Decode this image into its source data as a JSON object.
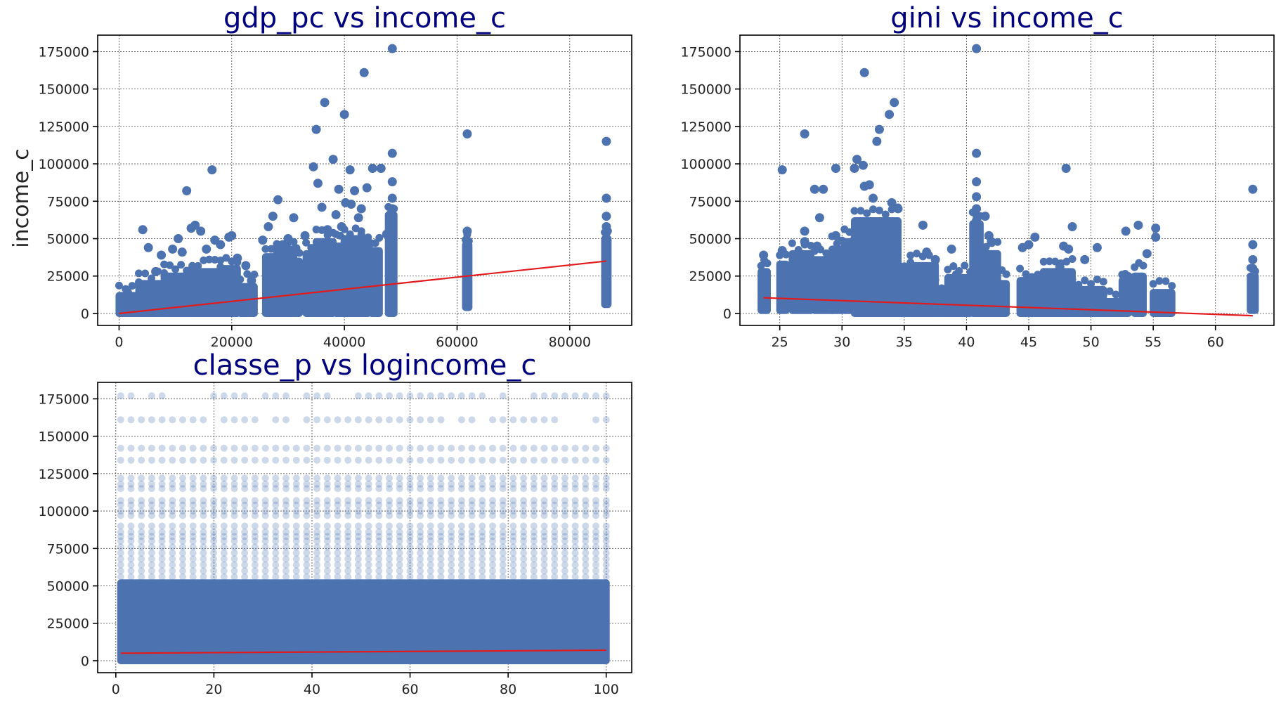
{
  "colors": {
    "points": "#4c72b0",
    "fit_line": "#e31a1c",
    "title": "#00007f"
  },
  "chart_data": [
    {
      "type": "scatter",
      "title": "gdp_pc vs income_c",
      "xlabel": "",
      "ylabel": "income_c",
      "xlim": [
        -3800,
        91000
      ],
      "ylim": [
        -8000,
        186000
      ],
      "grid": true,
      "xticks": [
        0,
        20000,
        40000,
        60000,
        80000
      ],
      "yticks": [
        0,
        25000,
        50000,
        75000,
        100000,
        125000,
        150000,
        175000
      ],
      "fit_line": [
        [
          0,
          0
        ],
        [
          86500,
          35000
        ]
      ],
      "points": [
        [
          1500,
          14000
        ],
        [
          2500,
          9000
        ],
        [
          3500,
          12000
        ],
        [
          4200,
          56000
        ],
        [
          5200,
          44000
        ],
        [
          6500,
          28000
        ],
        [
          7500,
          39000
        ],
        [
          8500,
          22000
        ],
        [
          9500,
          43000
        ],
        [
          10500,
          50000
        ],
        [
          11200,
          41000
        ],
        [
          12000,
          82000
        ],
        [
          12800,
          57000
        ],
        [
          13500,
          59000
        ],
        [
          14500,
          55000
        ],
        [
          15500,
          43000
        ],
        [
          16500,
          96000
        ],
        [
          17000,
          49000
        ],
        [
          18000,
          46000
        ],
        [
          19500,
          51000
        ],
        [
          20000,
          52000
        ],
        [
          21000,
          37000
        ],
        [
          22500,
          32000
        ],
        [
          23500,
          22000
        ],
        [
          25500,
          49000
        ],
        [
          26500,
          58000
        ],
        [
          27300,
          65000
        ],
        [
          28200,
          76000
        ],
        [
          29000,
          42000
        ],
        [
          30000,
          50000
        ],
        [
          31000,
          64000
        ],
        [
          33000,
          52000
        ],
        [
          34500,
          98000
        ],
        [
          35000,
          123000
        ],
        [
          35300,
          87000
        ],
        [
          36000,
          71000
        ],
        [
          36500,
          141000
        ],
        [
          37000,
          56000
        ],
        [
          38000,
          103000
        ],
        [
          38500,
          66000
        ],
        [
          39000,
          83000
        ],
        [
          39500,
          58000
        ],
        [
          40000,
          133000
        ],
        [
          40200,
          74000
        ],
        [
          41000,
          96000
        ],
        [
          41200,
          73000
        ],
        [
          41800,
          82000
        ],
        [
          42500,
          64000
        ],
        [
          43000,
          70000
        ],
        [
          43500,
          161000
        ],
        [
          44000,
          84000
        ],
        [
          45000,
          97000
        ],
        [
          46500,
          97000
        ],
        [
          47500,
          53000
        ],
        [
          48500,
          177000
        ],
        [
          48500,
          107000
        ],
        [
          48500,
          88000
        ],
        [
          48500,
          77000
        ],
        [
          48500,
          70000
        ],
        [
          61800,
          120000
        ],
        [
          61800,
          55000
        ],
        [
          61800,
          48000
        ],
        [
          86500,
          115000
        ],
        [
          86500,
          77000
        ],
        [
          86500,
          65000
        ],
        [
          86500,
          58000
        ],
        [
          86500,
          54000
        ]
      ],
      "bands": [
        [
          0,
          3500,
          0,
          12000
        ],
        [
          3500,
          8000,
          0,
          20000
        ],
        [
          8000,
          13000,
          0,
          25000
        ],
        [
          13000,
          18000,
          0,
          28000
        ],
        [
          18000,
          21000,
          0,
          30000
        ],
        [
          21500,
          24000,
          0,
          18000
        ],
        [
          26000,
          28000,
          0,
          38000
        ],
        [
          28000,
          31000,
          0,
          43000
        ],
        [
          31000,
          32000,
          0,
          35000
        ],
        [
          33200,
          35000,
          0,
          40000
        ],
        [
          35000,
          38000,
          0,
          48000
        ],
        [
          38500,
          40000,
          0,
          45000
        ],
        [
          40000,
          43000,
          0,
          50000
        ],
        [
          43000,
          44200,
          0,
          46000
        ],
        [
          44800,
          46200,
          0,
          42000
        ],
        [
          47800,
          48800,
          0,
          66000
        ],
        [
          61500,
          62100,
          4000,
          46000
        ],
        [
          86200,
          86800,
          6000,
          50000
        ]
      ]
    },
    {
      "type": "scatter",
      "title": "gini vs income_c",
      "xlabel": "",
      "ylabel": "",
      "xlim": [
        21.8,
        64.7
      ],
      "ylim": [
        -8000,
        186000
      ],
      "grid": true,
      "xticks": [
        25,
        30,
        35,
        40,
        45,
        50,
        55,
        60
      ],
      "yticks": [
        0,
        25000,
        50000,
        75000,
        100000,
        125000,
        150000,
        175000
      ],
      "fit_line": [
        [
          23.7,
          10500
        ],
        [
          63,
          -1500
        ]
      ],
      "points": [
        [
          23.7,
          39000
        ],
        [
          25.2,
          96000
        ],
        [
          25.2,
          42000
        ],
        [
          26.2,
          37000
        ],
        [
          27.0,
          120000
        ],
        [
          27.0,
          55000
        ],
        [
          27.0,
          48000
        ],
        [
          27.8,
          83000
        ],
        [
          28.0,
          45000
        ],
        [
          28.2,
          64000
        ],
        [
          28.5,
          83000
        ],
        [
          29.5,
          97000
        ],
        [
          29.5,
          52000
        ],
        [
          30.2,
          37000
        ],
        [
          31.0,
          97000
        ],
        [
          31.2,
          103000
        ],
        [
          31.5,
          57000
        ],
        [
          31.7,
          99000
        ],
        [
          31.8,
          161000
        ],
        [
          31.8,
          85000
        ],
        [
          32.2,
          86000
        ],
        [
          32.5,
          77000
        ],
        [
          32.8,
          115000
        ],
        [
          33.0,
          123000
        ],
        [
          33.3,
          58000
        ],
        [
          33.8,
          133000
        ],
        [
          34.0,
          74000
        ],
        [
          34.2,
          141000
        ],
        [
          34.5,
          70000
        ],
        [
          36.5,
          59000
        ],
        [
          36.8,
          41000
        ],
        [
          37.5,
          36000
        ],
        [
          38.8,
          43000
        ],
        [
          39.2,
          26000
        ],
        [
          40.8,
          177000
        ],
        [
          40.8,
          107000
        ],
        [
          40.8,
          88000
        ],
        [
          40.8,
          78000
        ],
        [
          40.8,
          70000
        ],
        [
          40.8,
          62000
        ],
        [
          41.5,
          65000
        ],
        [
          41.8,
          52000
        ],
        [
          42.0,
          48000
        ],
        [
          44.5,
          44000
        ],
        [
          45.0,
          46000
        ],
        [
          45.5,
          51000
        ],
        [
          46.5,
          26000
        ],
        [
          47.5,
          31000
        ],
        [
          47.8,
          45000
        ],
        [
          48.0,
          97000
        ],
        [
          48.2,
          43000
        ],
        [
          48.5,
          58000
        ],
        [
          49.5,
          36000
        ],
        [
          50.5,
          44000
        ],
        [
          52.8,
          55000
        ],
        [
          53.8,
          59000
        ],
        [
          54.5,
          40000
        ],
        [
          55.2,
          57000
        ],
        [
          55.2,
          51000
        ],
        [
          63.0,
          83000
        ],
        [
          63.0,
          46000
        ],
        [
          63.0,
          36000
        ],
        [
          63.0,
          30000
        ]
      ],
      "bands": [
        [
          23.5,
          24.0,
          2000,
          28000
        ],
        [
          25.0,
          25.5,
          2000,
          33000
        ],
        [
          26.0,
          27.5,
          2000,
          40000
        ],
        [
          27.8,
          29.2,
          2000,
          36000
        ],
        [
          29.2,
          30.0,
          2000,
          43000
        ],
        [
          30.2,
          31.0,
          2000,
          48000
        ],
        [
          31.0,
          34.5,
          0,
          62000
        ],
        [
          34.5,
          35.5,
          0,
          28000
        ],
        [
          35.5,
          37.5,
          0,
          32000
        ],
        [
          37.5,
          38.5,
          0,
          14000
        ],
        [
          38.5,
          40.3,
          0,
          24000
        ],
        [
          40.5,
          41.1,
          0,
          60000
        ],
        [
          41.1,
          42.5,
          0,
          40000
        ],
        [
          42.5,
          43.2,
          0,
          20000
        ],
        [
          44.3,
          46.2,
          0,
          22000
        ],
        [
          46.2,
          48.5,
          0,
          28000
        ],
        [
          48.5,
          51.0,
          0,
          16000
        ],
        [
          51.0,
          52.5,
          0,
          8000
        ],
        [
          52.5,
          53.0,
          0,
          22000
        ],
        [
          53.5,
          54.2,
          0,
          25000
        ],
        [
          55.0,
          56.5,
          0,
          14000
        ],
        [
          62.8,
          63.2,
          2000,
          25000
        ]
      ]
    },
    {
      "type": "scatter",
      "title": "classe_p vs logincome_c",
      "xlabel": "",
      "ylabel": "",
      "xlim": [
        -3.7,
        105.2
      ],
      "ylim": [
        -8000,
        186000
      ],
      "grid": true,
      "xticks": [
        0,
        20,
        40,
        60,
        80,
        100
      ],
      "yticks": [
        0,
        25000,
        50000,
        75000,
        100000,
        125000,
        150000,
        175000
      ],
      "fit_line": [
        [
          1,
          5000
        ],
        [
          100,
          7000
        ]
      ],
      "rows": [
        177000,
        161000,
        142000,
        134000,
        122000,
        118000,
        115000,
        107000,
        104000,
        100000,
        97000,
        90000,
        86000,
        83000,
        80000,
        76000,
        72000,
        68000,
        64000,
        60000,
        56000
      ],
      "bands": [
        [
          1,
          100,
          0,
          52000
        ]
      ]
    }
  ]
}
